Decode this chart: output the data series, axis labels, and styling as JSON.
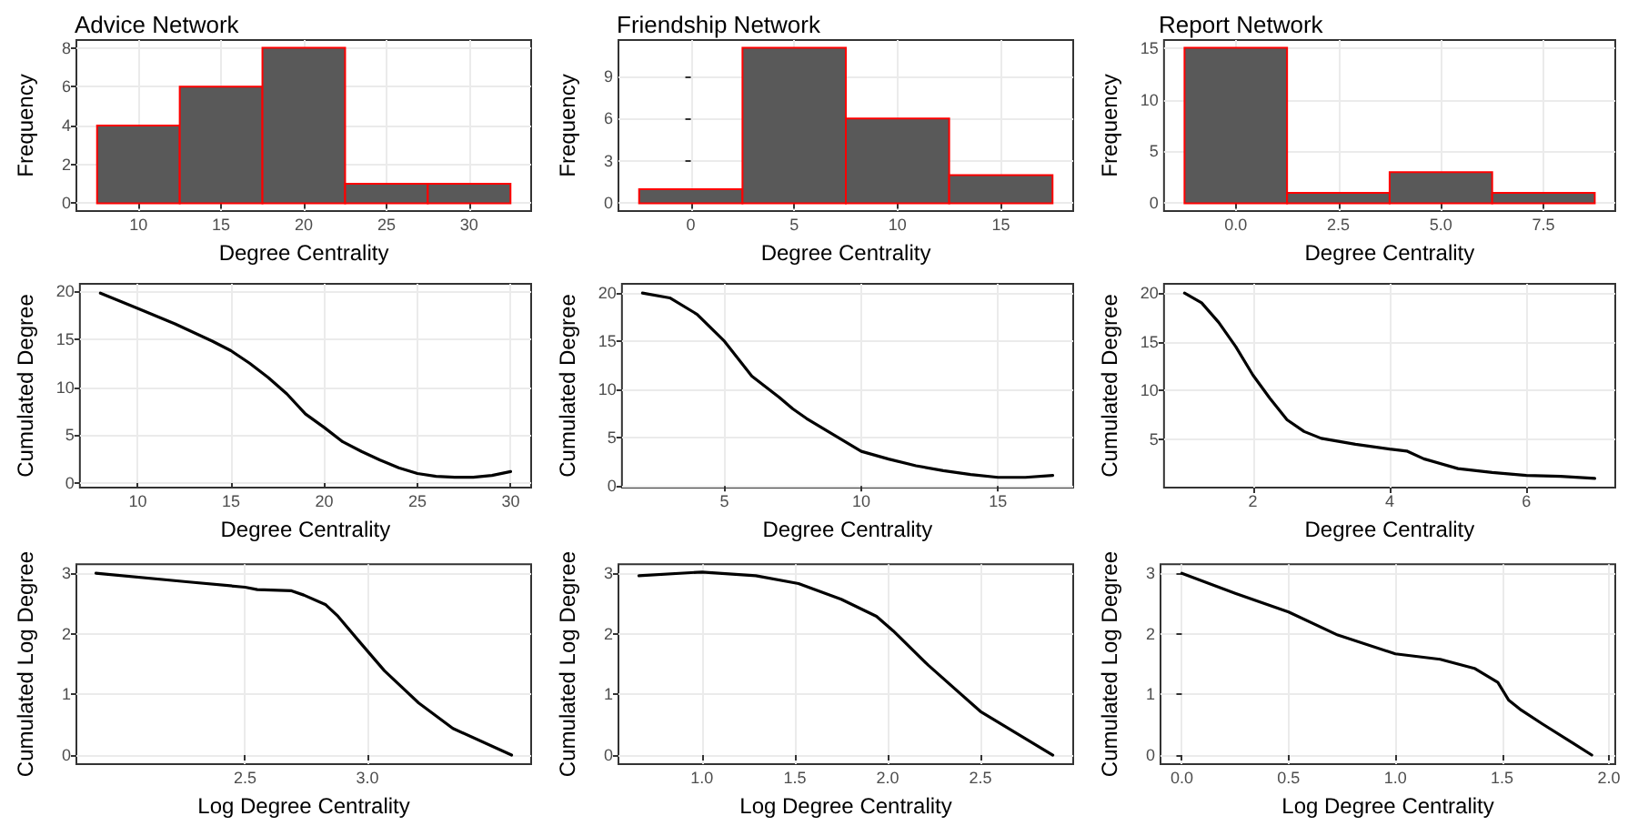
{
  "chart_data": [
    {
      "type": "histogram",
      "title": "Advice Network",
      "xlabel": "Degree Centrality",
      "ylabel": "Frequency",
      "bins": [
        7.5,
        12.5,
        17.5,
        22.5,
        27.5,
        32.5
      ],
      "values": [
        4,
        6,
        8,
        1,
        1
      ],
      "color": "#595959",
      "xlim": [
        6.25,
        33.75
      ],
      "xticks": [
        10,
        15,
        20,
        25,
        30
      ],
      "ylim": [
        -0.4,
        8.4
      ],
      "yticks": [
        0,
        2,
        4,
        6,
        8
      ],
      "grid": true
    },
    {
      "type": "histogram",
      "title": "Friendship Network",
      "xlabel": "Degree Centrality",
      "ylabel": "Frequency",
      "bins": [
        -2.5,
        2.5,
        7.5,
        12.5,
        17.5
      ],
      "values": [
        1,
        11,
        6,
        2
      ],
      "color": "#595959",
      "xlim": [
        -3.5,
        18.5
      ],
      "xticks": [
        0,
        5,
        10,
        15
      ],
      "ylim": [
        -0.55,
        11.55
      ],
      "yticks": [
        0,
        3,
        6,
        9
      ],
      "grid": true
    },
    {
      "type": "histogram",
      "title": "Report Network",
      "xlabel": "Degree Centrality",
      "ylabel": "Frequency",
      "bins": [
        -1.25,
        1.25,
        3.75,
        6.25,
        8.75
      ],
      "values": [
        15,
        1,
        3,
        1
      ],
      "color": "#595959",
      "xlim": [
        -1.75,
        9.25
      ],
      "xticks": [
        {
          "value": 0,
          "label": "0.0"
        },
        2.5,
        {
          "value": 5,
          "label": "5.0"
        },
        7.5
      ],
      "ylim": [
        -0.75,
        15.75
      ],
      "yticks": [
        0,
        5,
        10,
        15
      ],
      "grid": true
    },
    {
      "type": "line",
      "xlabel": "Degree Centrality",
      "ylabel": "Cumulated Degree",
      "xlim": [
        6.9,
        31.1
      ],
      "xticks": [
        10,
        15,
        20,
        25,
        30
      ],
      "ylim": [
        -0.47,
        20.77
      ],
      "yticks": [
        0,
        5,
        10,
        15,
        20
      ],
      "grid": true,
      "marker": "none",
      "line_style": "solid",
      "series": [
        {
          "color": "#000000",
          "x": [
            8,
            10,
            12,
            14,
            15,
            16,
            17,
            18,
            19,
            20,
            21,
            22,
            23,
            24,
            25,
            26,
            27,
            28,
            29,
            30
          ],
          "values": [
            19.8,
            18.2,
            16.6,
            14.8,
            13.8,
            12.5,
            11,
            9.3,
            7.2,
            5.8,
            4.3,
            3.3,
            2.4,
            1.6,
            1.0,
            0.7,
            0.6,
            0.6,
            0.8,
            1.2
          ]
        }
      ]
    },
    {
      "type": "line",
      "xlabel": "Degree Centrality",
      "ylabel": "Cumulated Degree",
      "xlim": [
        1.25,
        17.75
      ],
      "xticks": [
        5,
        10,
        15
      ],
      "ylim": [
        -0.16,
        20.96
      ],
      "yticks": [
        0,
        5,
        10,
        15,
        20
      ],
      "grid": true,
      "marker": "none",
      "line_style": "solid",
      "series": [
        {
          "color": "#000000",
          "x": [
            2,
            3,
            4,
            5,
            6,
            7,
            7.5,
            8,
            9,
            10,
            11,
            12,
            13,
            14,
            15,
            16,
            17
          ],
          "values": [
            20,
            19.5,
            17.8,
            15.0,
            11.4,
            9.2,
            8.0,
            7.0,
            5.3,
            3.6,
            2.8,
            2.1,
            1.6,
            1.2,
            0.9,
            0.9,
            1.1
          ]
        }
      ]
    },
    {
      "type": "line",
      "xlabel": "Degree Centrality",
      "ylabel": "Cumulated Degree",
      "xlim": [
        0.7,
        7.3
      ],
      "xticks": [
        2,
        4,
        6
      ],
      "ylim": [
        0.05,
        20.95
      ],
      "yticks": [
        5,
        10,
        15,
        20
      ],
      "grid": true,
      "marker": "none",
      "line_style": "solid",
      "series": [
        {
          "color": "#000000",
          "x": [
            1,
            1.25,
            1.5,
            1.75,
            2,
            2.25,
            2.5,
            2.75,
            3,
            3.5,
            4,
            4.25,
            4.5,
            5,
            5.5,
            6,
            6.5,
            7
          ],
          "values": [
            20,
            19,
            17,
            14.5,
            11.6,
            9.2,
            7.0,
            5.8,
            5.1,
            4.5,
            4,
            3.8,
            3,
            2,
            1.6,
            1.3,
            1.2,
            1
          ]
        }
      ]
    },
    {
      "type": "line",
      "xlabel": "Log Degree Centrality",
      "ylabel": "Cumulated Log Degree",
      "xlim": [
        1.81,
        3.67
      ],
      "xticks": [
        2.5,
        {
          "value": 3,
          "label": "3.0"
        }
      ],
      "ylim": [
        -0.15,
        3.15
      ],
      "yticks": [
        0,
        1,
        2,
        3
      ],
      "grid": true,
      "marker": "none",
      "line_style": "solid",
      "series": [
        {
          "color": "#000000",
          "x": [
            1.89,
            2.26,
            2.5,
            2.55,
            2.69,
            2.74,
            2.83,
            2.88,
            2.97,
            3.07,
            3.21,
            3.35,
            3.59
          ],
          "values": [
            3.0,
            2.86,
            2.77,
            2.73,
            2.71,
            2.64,
            2.48,
            2.29,
            1.86,
            1.39,
            0.86,
            0.44,
            0.0
          ]
        }
      ]
    },
    {
      "type": "line",
      "xlabel": "Log Degree Centrality",
      "ylabel": "Cumulated Log Degree",
      "xlim": [
        0.55,
        3.0
      ],
      "xticks": [
        {
          "value": 1,
          "label": "1.0"
        },
        1.5,
        {
          "value": 2,
          "label": "2.0"
        },
        2.5
      ],
      "ylim": [
        -0.15,
        3.15
      ],
      "yticks": [
        0,
        1,
        2,
        3
      ],
      "grid": true,
      "marker": "none",
      "line_style": "solid",
      "series": [
        {
          "color": "#000000",
          "x": [
            0.66,
            1.0,
            1.29,
            1.52,
            1.75,
            1.94,
            2.03,
            2.22,
            2.5,
            2.89
          ],
          "values": [
            2.96,
            3.02,
            2.96,
            2.83,
            2.57,
            2.29,
            2.05,
            1.48,
            0.72,
            0.0
          ]
        }
      ]
    },
    {
      "type": "line",
      "xlabel": "Log Degree Centrality",
      "ylabel": "Cumulated Log Degree",
      "xlim": [
        -0.1,
        2.03
      ],
      "xticks": [
        {
          "value": 0,
          "label": "0.0"
        },
        0.5,
        {
          "value": 1,
          "label": "1.0"
        },
        1.5,
        {
          "value": 2,
          "label": "2.0"
        }
      ],
      "ylim": [
        -0.15,
        3.15
      ],
      "yticks": [
        0,
        1,
        2,
        3
      ],
      "grid": true,
      "marker": "none",
      "line_style": "solid",
      "series": [
        {
          "color": "#000000",
          "x": [
            0,
            0.25,
            0.5,
            0.73,
            1.0,
            1.21,
            1.37,
            1.48,
            1.53,
            1.59,
            1.69,
            1.83,
            1.92
          ],
          "values": [
            3.0,
            2.67,
            2.36,
            1.98,
            1.67,
            1.58,
            1.43,
            1.2,
            0.91,
            0.74,
            0.51,
            0.2,
            0.0
          ]
        }
      ]
    }
  ]
}
